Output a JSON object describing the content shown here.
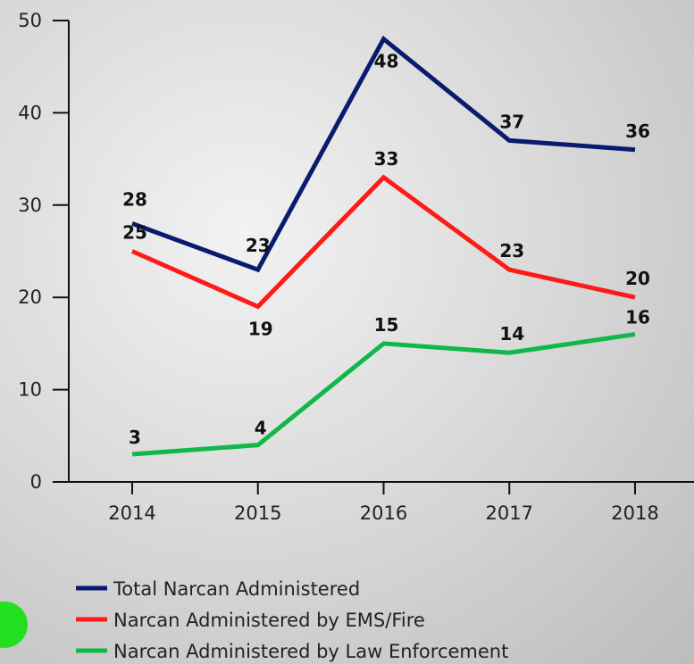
{
  "chart_data": {
    "type": "line",
    "categories": [
      "2014",
      "2015",
      "2016",
      "2017",
      "2018"
    ],
    "series": [
      {
        "name": "Total Narcan Administered",
        "color": "#0a1a6e",
        "values": [
          28,
          23,
          48,
          37,
          36
        ]
      },
      {
        "name": "Narcan Administered by EMS/Fire",
        "color": "#ff1a1a",
        "values": [
          25,
          19,
          33,
          23,
          20
        ]
      },
      {
        "name": "Narcan Administered by Law Enforcement",
        "color": "#10b84a",
        "values": [
          3,
          4,
          15,
          14,
          16
        ]
      }
    ],
    "ylim": [
      0,
      50
    ],
    "yticks": [
      0,
      10,
      20,
      30,
      40,
      50
    ],
    "grid": false
  }
}
